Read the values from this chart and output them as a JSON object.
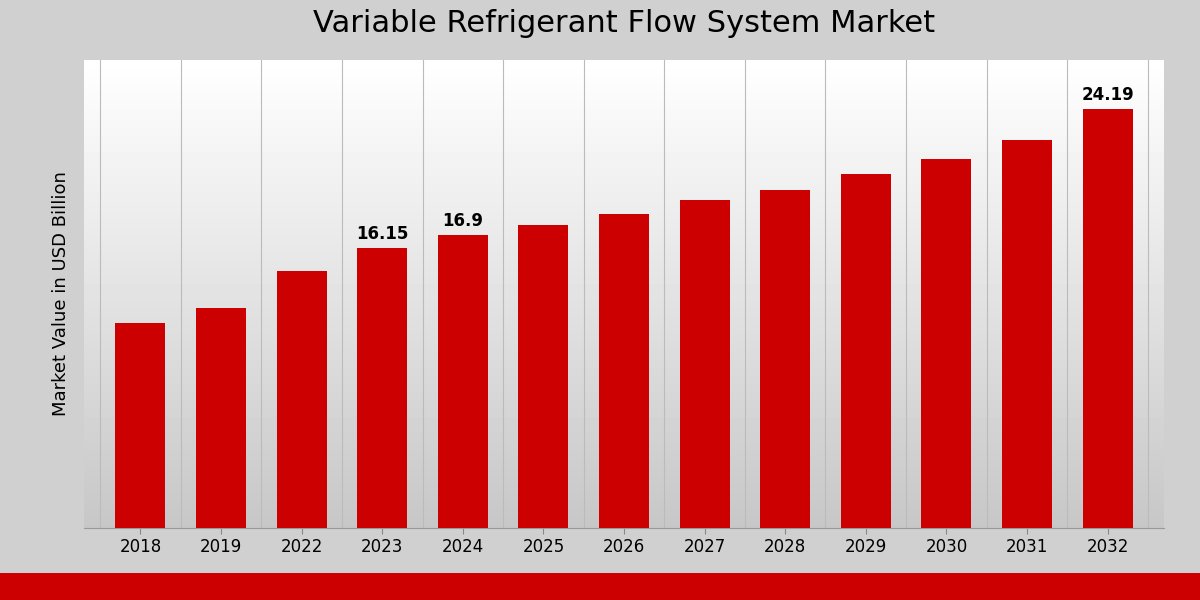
{
  "title": "Variable Refrigerant Flow System Market",
  "ylabel": "Market Value in USD Billion",
  "categories": [
    "2018",
    "2019",
    "2022",
    "2023",
    "2024",
    "2025",
    "2026",
    "2027",
    "2028",
    "2029",
    "2030",
    "2031",
    "2032"
  ],
  "values": [
    11.8,
    12.7,
    14.8,
    16.15,
    16.9,
    17.5,
    18.1,
    18.9,
    19.5,
    20.4,
    21.3,
    22.4,
    24.19
  ],
  "bar_color": "#CC0000",
  "label_values": [
    null,
    null,
    null,
    16.15,
    16.9,
    null,
    null,
    null,
    null,
    null,
    null,
    null,
    24.19
  ],
  "ylim": [
    0,
    27
  ],
  "bar_width": 0.62,
  "title_fontsize": 22,
  "ylabel_fontsize": 13,
  "tick_fontsize": 12,
  "label_fontsize": 12,
  "grid_color": "#bbbbbb",
  "bg_color_top": "#f0f0f0",
  "bg_color_bottom": "#c8c8c8",
  "fig_bg": "#d0d0d0",
  "bottom_bar_color": "#CC0000",
  "bottom_bar_height": 0.045
}
